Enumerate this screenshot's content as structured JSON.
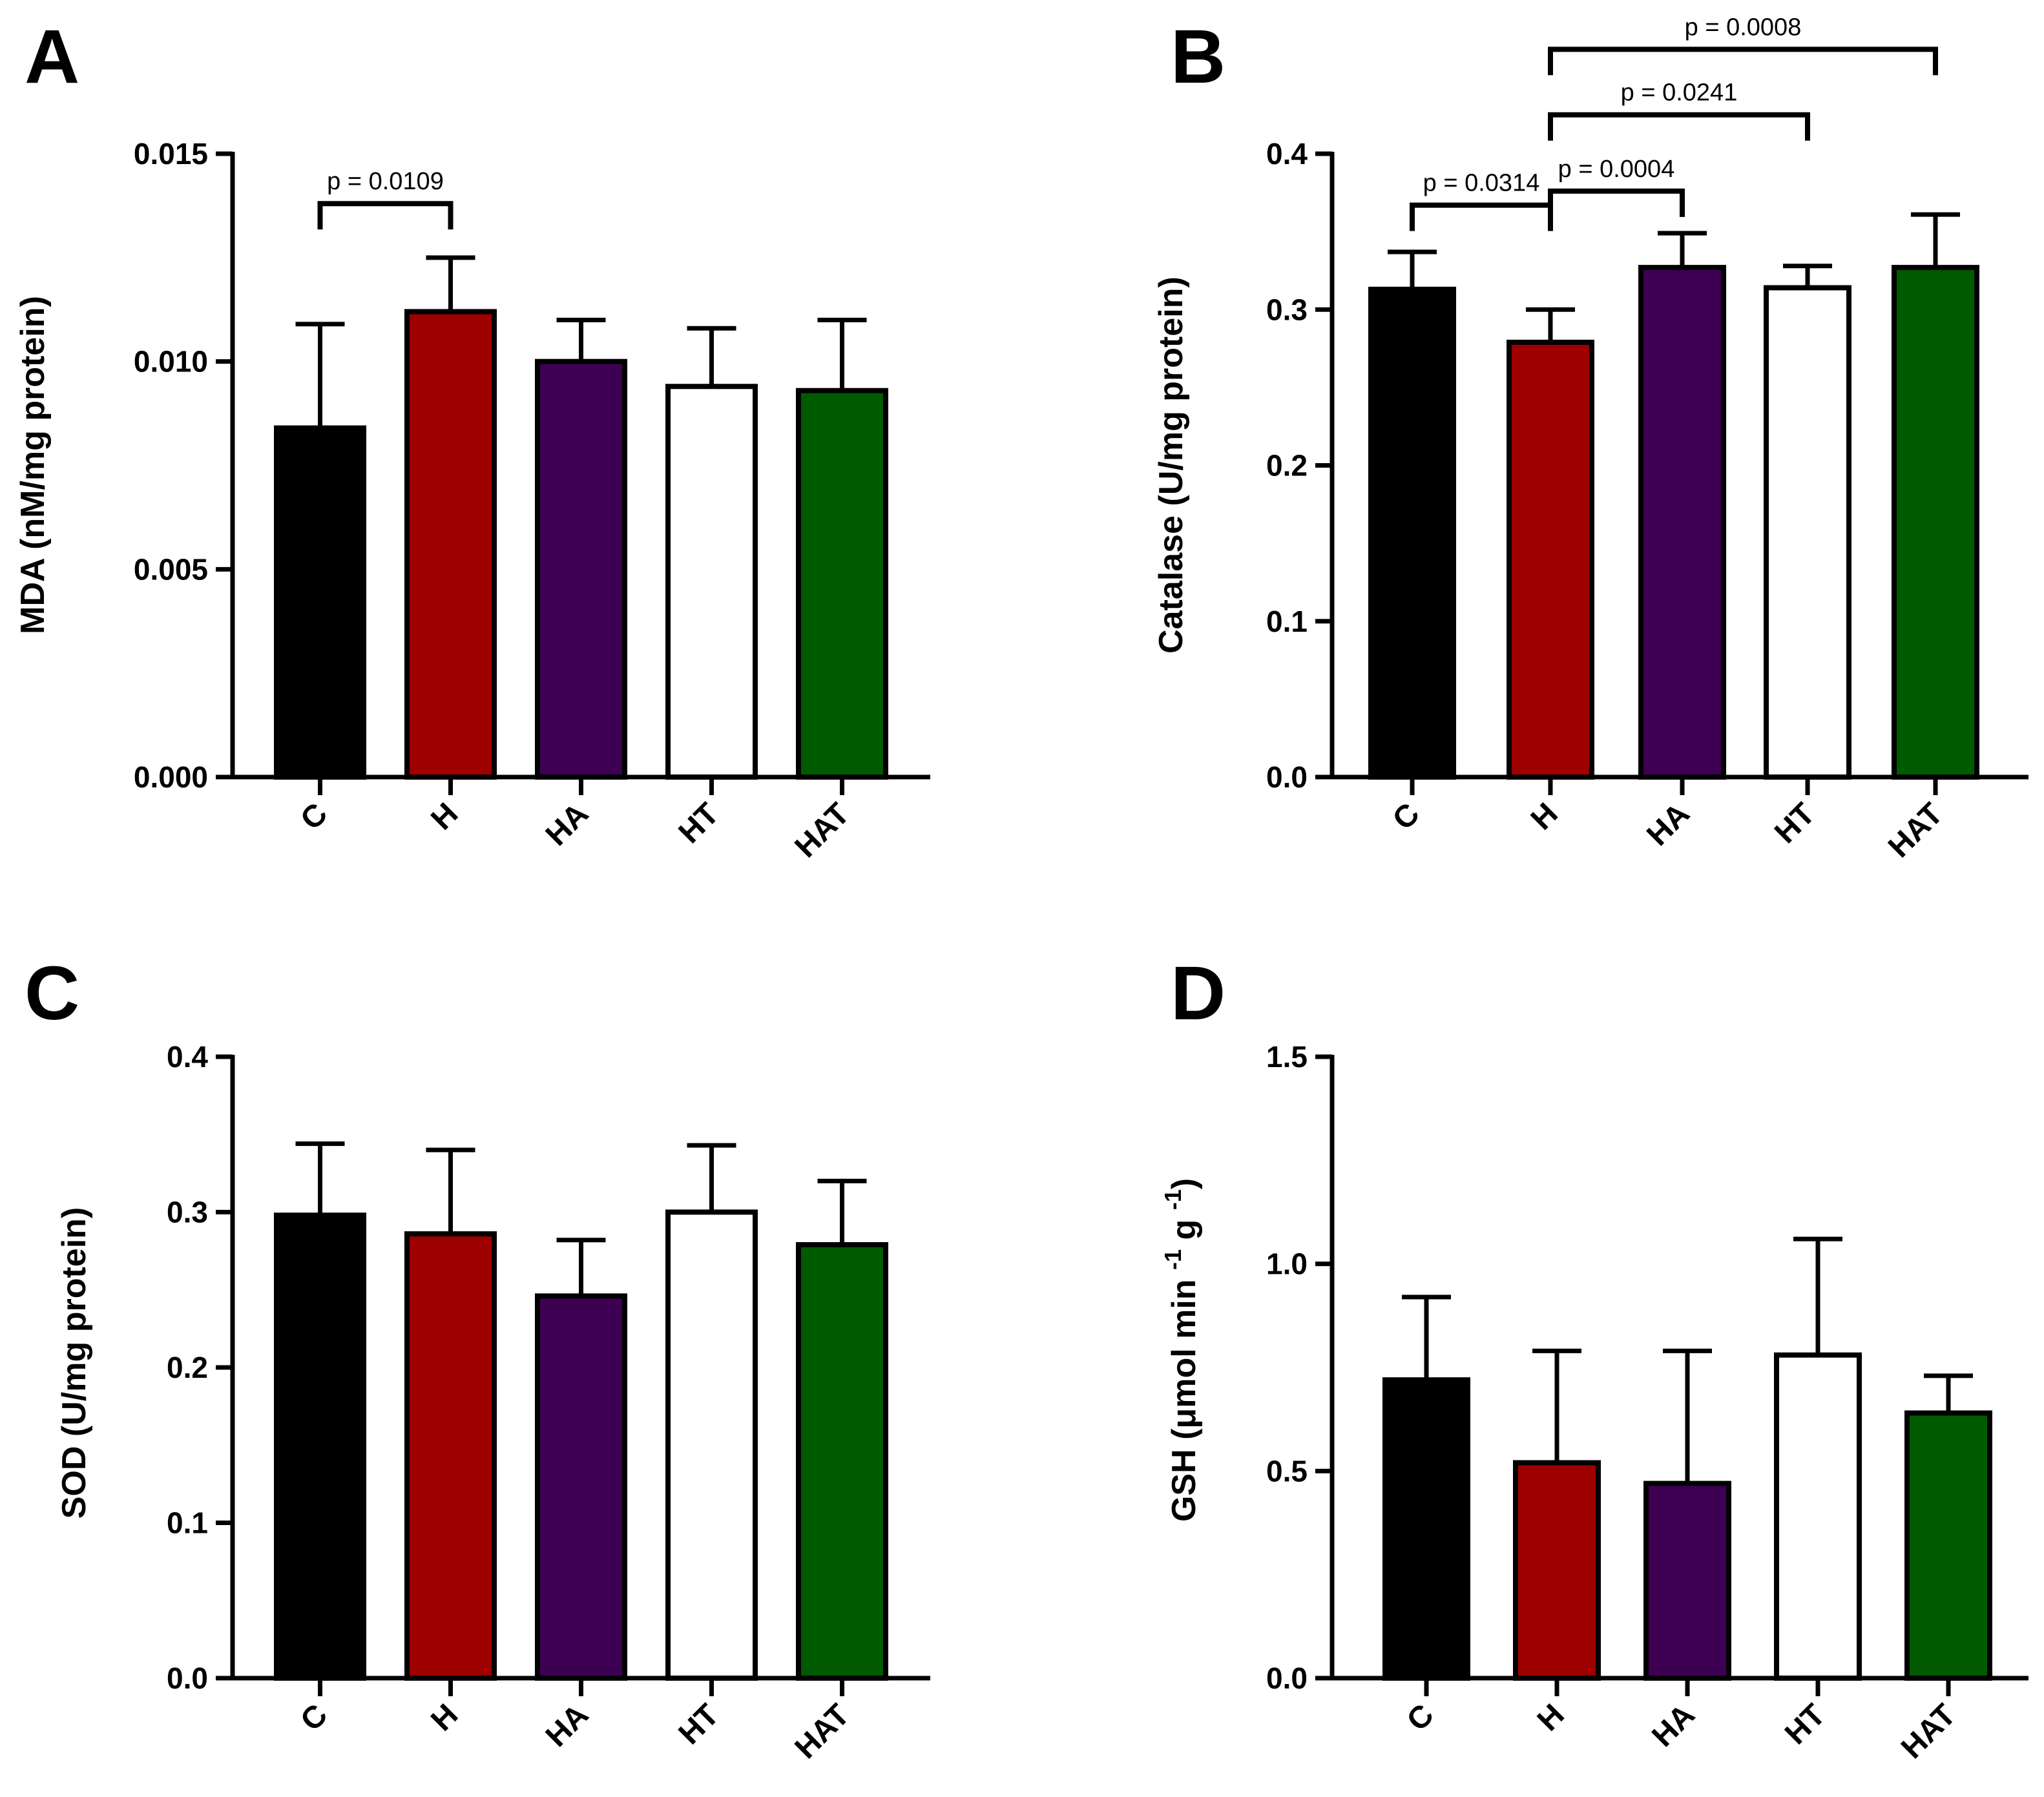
{
  "figure": {
    "panels": [
      "A",
      "B",
      "C",
      "D"
    ]
  },
  "colors": {
    "C": "#000000",
    "H": "#9e0000",
    "HA": "#3d0053",
    "HT": "#ffffff",
    "HAT": "#005a00"
  },
  "chart_data": [
    {
      "panel": "A",
      "type": "bar",
      "ylabel": "MDA (nM/mg protein)",
      "ylim": [
        0,
        0.015
      ],
      "ticks": [
        "0.000",
        "0.005",
        "0.010",
        "0.015"
      ],
      "tick_values": [
        0,
        0.005,
        0.01,
        0.015
      ],
      "categories": [
        "C",
        "H",
        "HA",
        "HT",
        "HAT"
      ],
      "values": [
        0.0084,
        0.0112,
        0.01,
        0.0094,
        0.0093
      ],
      "errors_upper": [
        0.0109,
        0.0125,
        0.011,
        0.0108,
        0.011
      ],
      "significance": [
        {
          "from": "C",
          "to": "H",
          "label": "p = 0.0109",
          "level": 0.0138
        }
      ]
    },
    {
      "panel": "B",
      "type": "bar",
      "ylabel": "Catalase (U/mg protein)",
      "ylim": [
        0,
        0.4
      ],
      "ticks": [
        "0.0",
        "0.1",
        "0.2",
        "0.3",
        "0.4"
      ],
      "tick_values": [
        0,
        0.1,
        0.2,
        0.3,
        0.4
      ],
      "categories": [
        "C",
        "H",
        "HA",
        "HT",
        "HAT"
      ],
      "values": [
        0.313,
        0.279,
        0.327,
        0.314,
        0.327
      ],
      "errors_upper": [
        0.337,
        0.3,
        0.349,
        0.328,
        0.361
      ],
      "significance": [
        {
          "from": "C",
          "to": "H",
          "label": "p = 0.0314",
          "level": 0.367
        },
        {
          "from": "H",
          "to": "HA",
          "label": "p = 0.0004",
          "level": 0.376
        },
        {
          "from": "H",
          "to": "HT",
          "label": "p = 0.0241",
          "level": 0.425
        },
        {
          "from": "H",
          "to": "HAT",
          "label": "p = 0.0008",
          "level": 0.467
        }
      ]
    },
    {
      "panel": "C",
      "type": "bar",
      "ylabel": "SOD (U/mg protein)",
      "ylim": [
        0,
        0.4
      ],
      "ticks": [
        "0.0",
        "0.1",
        "0.2",
        "0.3",
        "0.4"
      ],
      "tick_values": [
        0,
        0.1,
        0.2,
        0.3,
        0.4
      ],
      "categories": [
        "C",
        "H",
        "HA",
        "HT",
        "HAT"
      ],
      "values": [
        0.298,
        0.286,
        0.246,
        0.3,
        0.279
      ],
      "errors_upper": [
        0.344,
        0.34,
        0.282,
        0.343,
        0.32
      ],
      "significance": []
    },
    {
      "panel": "D",
      "type": "bar",
      "ylabel": "GSH (μmol min -1 g -1)",
      "ylabel_parts": {
        "main": "GSH (μmol min ",
        "sup1": "-1",
        "mid": " g ",
        "sup2": "-1",
        "end": ")"
      },
      "ylim": [
        0,
        1.5
      ],
      "ticks": [
        "0.0",
        "0.5",
        "1.0",
        "1.5"
      ],
      "tick_values": [
        0,
        0.5,
        1.0,
        1.5
      ],
      "categories": [
        "C",
        "H",
        "HA",
        "HT",
        "HAT"
      ],
      "values": [
        0.72,
        0.52,
        0.47,
        0.78,
        0.64
      ],
      "errors_upper": [
        0.92,
        0.79,
        0.79,
        1.06,
        0.73
      ],
      "significance": []
    }
  ]
}
